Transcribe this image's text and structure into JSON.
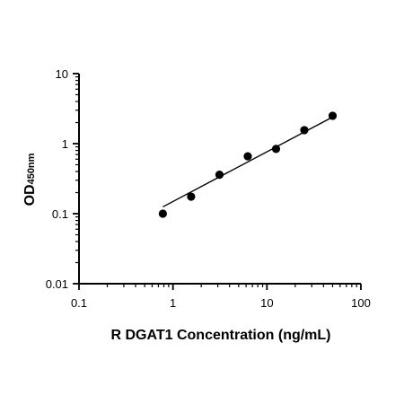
{
  "chart_data": {
    "type": "scatter",
    "scale": {
      "x": "log",
      "y": "log"
    },
    "xlim": [
      0.1,
      100
    ],
    "ylim": [
      0.01,
      10
    ],
    "x_ticks": [
      0.1,
      1,
      10,
      100
    ],
    "y_ticks": [
      0.01,
      0.1,
      1,
      10
    ],
    "x_tick_labels": [
      "0.1",
      "1",
      "10",
      "100"
    ],
    "y_tick_labels": [
      "0.01",
      "0.1",
      "1",
      "10"
    ],
    "xlabel": "R DGAT1 Concentration (ng/mL)",
    "ylabel_main": "OD",
    "ylabel_sub": "450nm",
    "grid": false,
    "series": [
      {
        "points": [
          {
            "x": 0.78,
            "y": 0.1
          },
          {
            "x": 1.56,
            "y": 0.175
          },
          {
            "x": 3.125,
            "y": 0.36
          },
          {
            "x": 6.25,
            "y": 0.66
          },
          {
            "x": 12.5,
            "y": 0.84
          },
          {
            "x": 25,
            "y": 1.56
          },
          {
            "x": 50,
            "y": 2.5
          }
        ]
      }
    ],
    "fit_line": {
      "x": [
        0.78,
        50
      ],
      "y": [
        0.125,
        2.4
      ]
    },
    "colors": {
      "points": "#000000",
      "line": "#000000",
      "axes": "#000000"
    }
  }
}
